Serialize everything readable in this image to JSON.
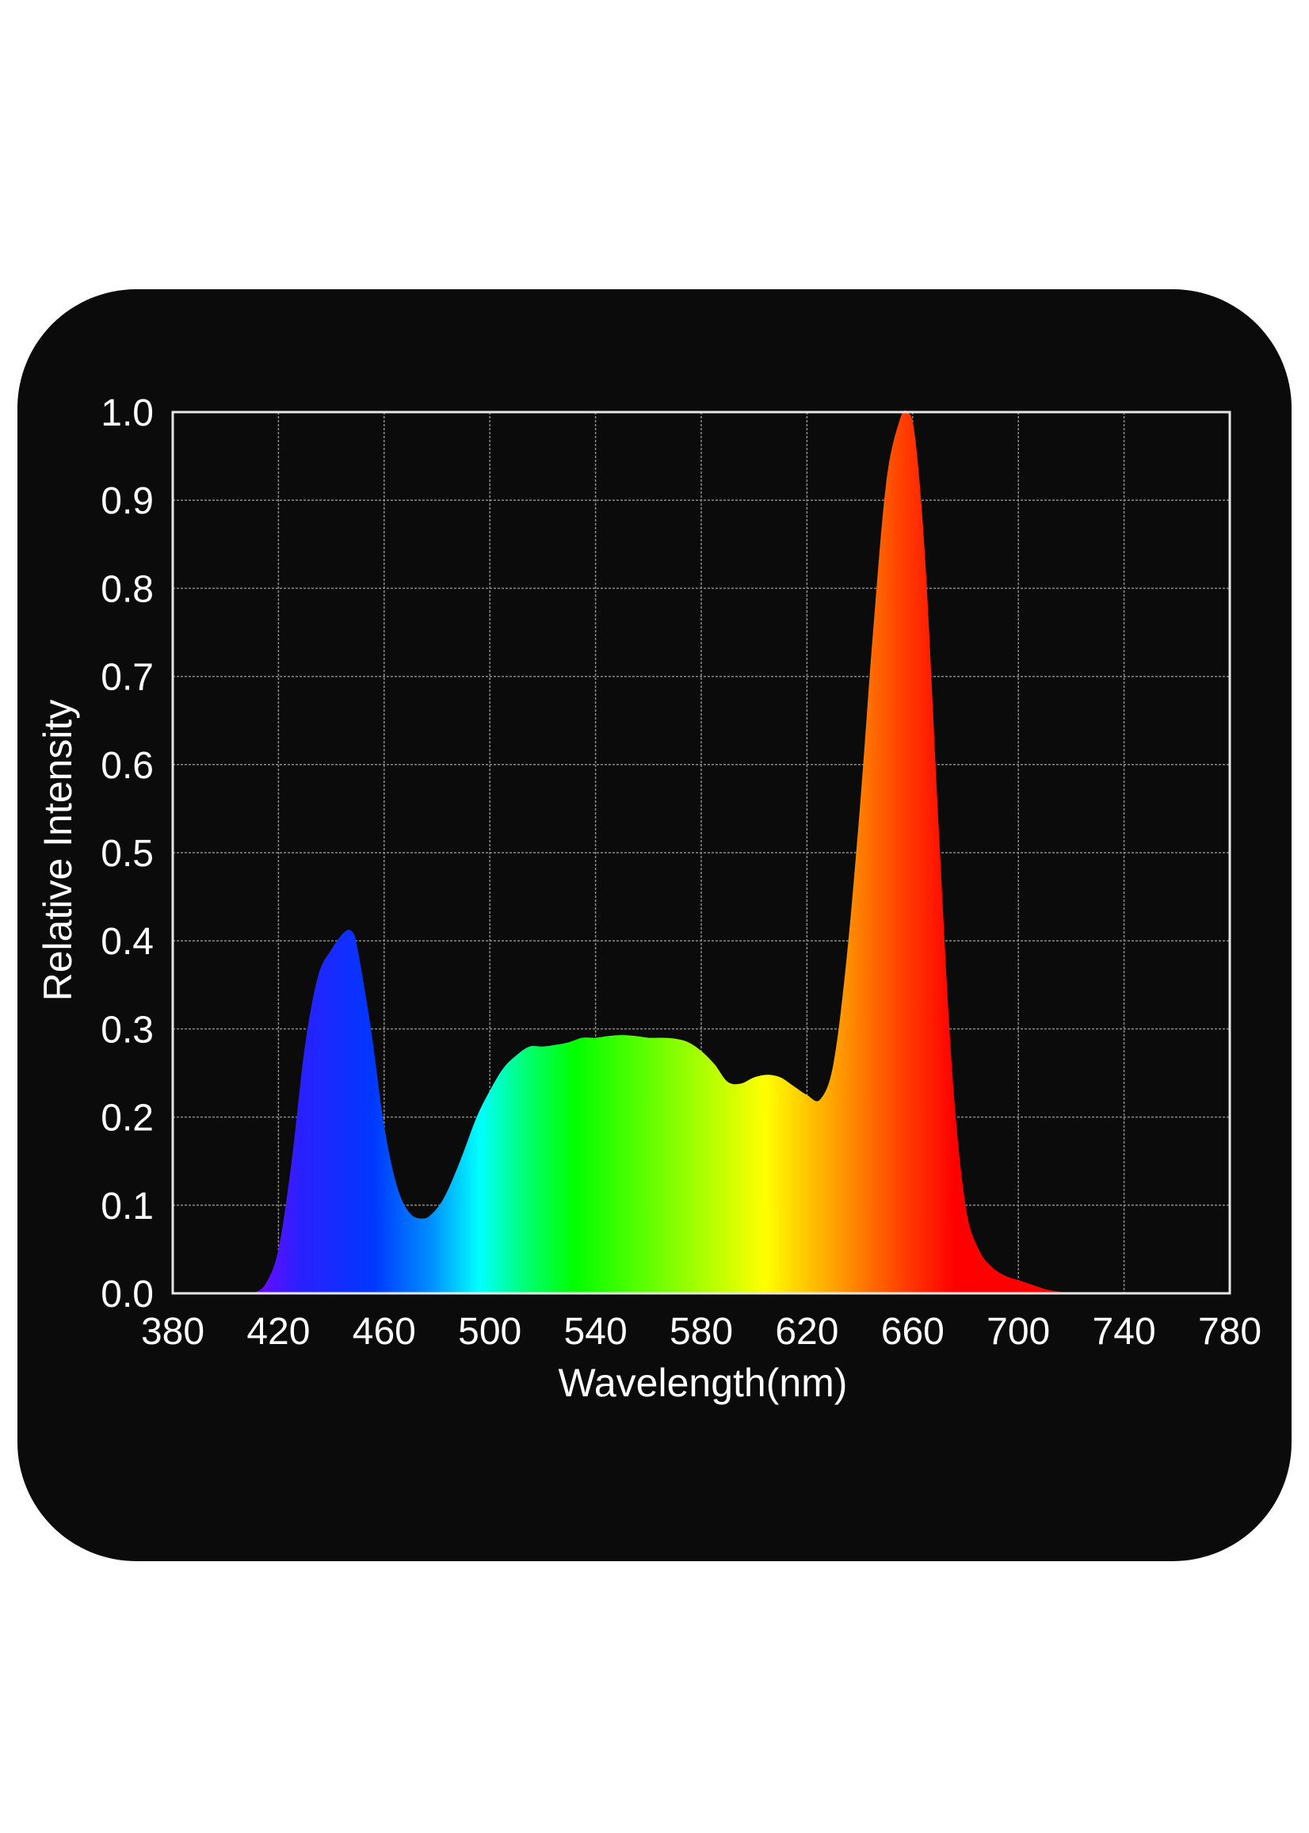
{
  "chart_data": {
    "type": "area",
    "title": "",
    "xlabel": "Wavelength(nm)",
    "ylabel": "Relative Intensity",
    "xlim": [
      380,
      780
    ],
    "ylim": [
      0.0,
      1.0
    ],
    "x_ticks": [
      "380",
      "420",
      "460",
      "500",
      "540",
      "580",
      "620",
      "660",
      "700",
      "740",
      "780"
    ],
    "y_ticks": [
      "0.0",
      "0.1",
      "0.2",
      "0.3",
      "0.4",
      "0.5",
      "0.6",
      "0.7",
      "0.8",
      "0.9",
      "1.0"
    ],
    "grid": true,
    "fill": "spectral gradient (violet to red)",
    "colors": {
      "background": "#0b0b0b",
      "grid": "#8a8a8a",
      "frame": "#e6e6e6",
      "text": "#ffffff"
    },
    "series": [
      {
        "x": [
          410,
          415,
          420,
          425,
          430,
          435,
          440,
          445,
          448,
          450,
          455,
          460,
          465,
          470,
          475,
          478,
          482,
          486,
          490,
          495,
          500,
          505,
          510,
          515,
          520,
          525,
          530,
          535,
          540,
          545,
          550,
          555,
          560,
          565,
          570,
          575,
          580,
          585,
          590,
          595,
          600,
          605,
          610,
          615,
          620,
          625,
          630,
          635,
          640,
          645,
          650,
          655,
          658,
          661,
          665,
          670,
          675,
          680,
          685,
          690,
          695,
          700,
          705,
          710,
          715,
          720
        ],
        "y": [
          0.0,
          0.01,
          0.05,
          0.15,
          0.28,
          0.36,
          0.39,
          0.41,
          0.41,
          0.39,
          0.3,
          0.19,
          0.12,
          0.09,
          0.085,
          0.09,
          0.105,
          0.13,
          0.16,
          0.2,
          0.23,
          0.255,
          0.27,
          0.28,
          0.28,
          0.282,
          0.285,
          0.29,
          0.29,
          0.292,
          0.293,
          0.292,
          0.29,
          0.29,
          0.289,
          0.285,
          0.275,
          0.26,
          0.24,
          0.238,
          0.245,
          0.248,
          0.245,
          0.235,
          0.225,
          0.22,
          0.26,
          0.38,
          0.55,
          0.75,
          0.92,
          0.99,
          1.0,
          0.97,
          0.82,
          0.52,
          0.25,
          0.1,
          0.05,
          0.03,
          0.02,
          0.015,
          0.01,
          0.005,
          0.002,
          0.0
        ]
      }
    ]
  }
}
